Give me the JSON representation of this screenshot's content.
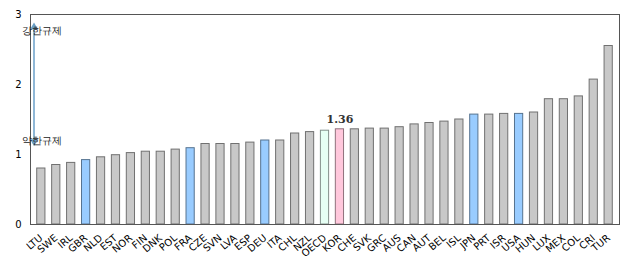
{
  "chart_data": {
    "type": "bar",
    "categories": [
      "LTU",
      "SWE",
      "IRL",
      "GBR",
      "NLD",
      "EST",
      "NOR",
      "FIN",
      "DNK",
      "POL",
      "FRA",
      "CZE",
      "SVN",
      "LVA",
      "ESP",
      "DEU",
      "ITA",
      "CHL",
      "NZL",
      "OECD",
      "KOR",
      "CHE",
      "SVK",
      "GRC",
      "AUS",
      "CAN",
      "AUT",
      "BEL",
      "ISL",
      "JPN",
      "PRT",
      "ISR",
      "USA",
      "HUN",
      "LUX",
      "MEX",
      "COL",
      "CRI",
      "TUR"
    ],
    "values": [
      0.8,
      0.85,
      0.88,
      0.92,
      0.96,
      0.99,
      1.02,
      1.04,
      1.04,
      1.07,
      1.09,
      1.15,
      1.15,
      1.15,
      1.17,
      1.2,
      1.2,
      1.3,
      1.32,
      1.34,
      1.36,
      1.36,
      1.37,
      1.37,
      1.39,
      1.43,
      1.45,
      1.47,
      1.5,
      1.57,
      1.57,
      1.58,
      1.58,
      1.6,
      1.79,
      1.79,
      1.83,
      2.07,
      2.55
    ],
    "colors": [
      "#c8c8c8",
      "#c8c8c8",
      "#c8c8c8",
      "#99ccff",
      "#c8c8c8",
      "#c8c8c8",
      "#c8c8c8",
      "#c8c8c8",
      "#c8c8c8",
      "#c8c8c8",
      "#99ccff",
      "#c8c8c8",
      "#c8c8c8",
      "#c8c8c8",
      "#c8c8c8",
      "#99ccff",
      "#c8c8c8",
      "#c8c8c8",
      "#c8c8c8",
      "#e6fff4",
      "#ffc8dc",
      "#c8c8c8",
      "#c8c8c8",
      "#c8c8c8",
      "#c8c8c8",
      "#c8c8c8",
      "#c8c8c8",
      "#c8c8c8",
      "#c8c8c8",
      "#99ccff",
      "#c8c8c8",
      "#c8c8c8",
      "#99ccff",
      "#c8c8c8",
      "#c8c8c8",
      "#c8c8c8",
      "#c8c8c8",
      "#c8c8c8",
      "#c8c8c8"
    ],
    "ylim": [
      0,
      3
    ],
    "yticks": [
      0,
      1,
      2,
      3
    ],
    "grid": false,
    "annotations": [
      {
        "text": "1.36",
        "category": "KOR"
      },
      {
        "text": "강한규제"
      },
      {
        "text": "약한규제"
      }
    ]
  }
}
